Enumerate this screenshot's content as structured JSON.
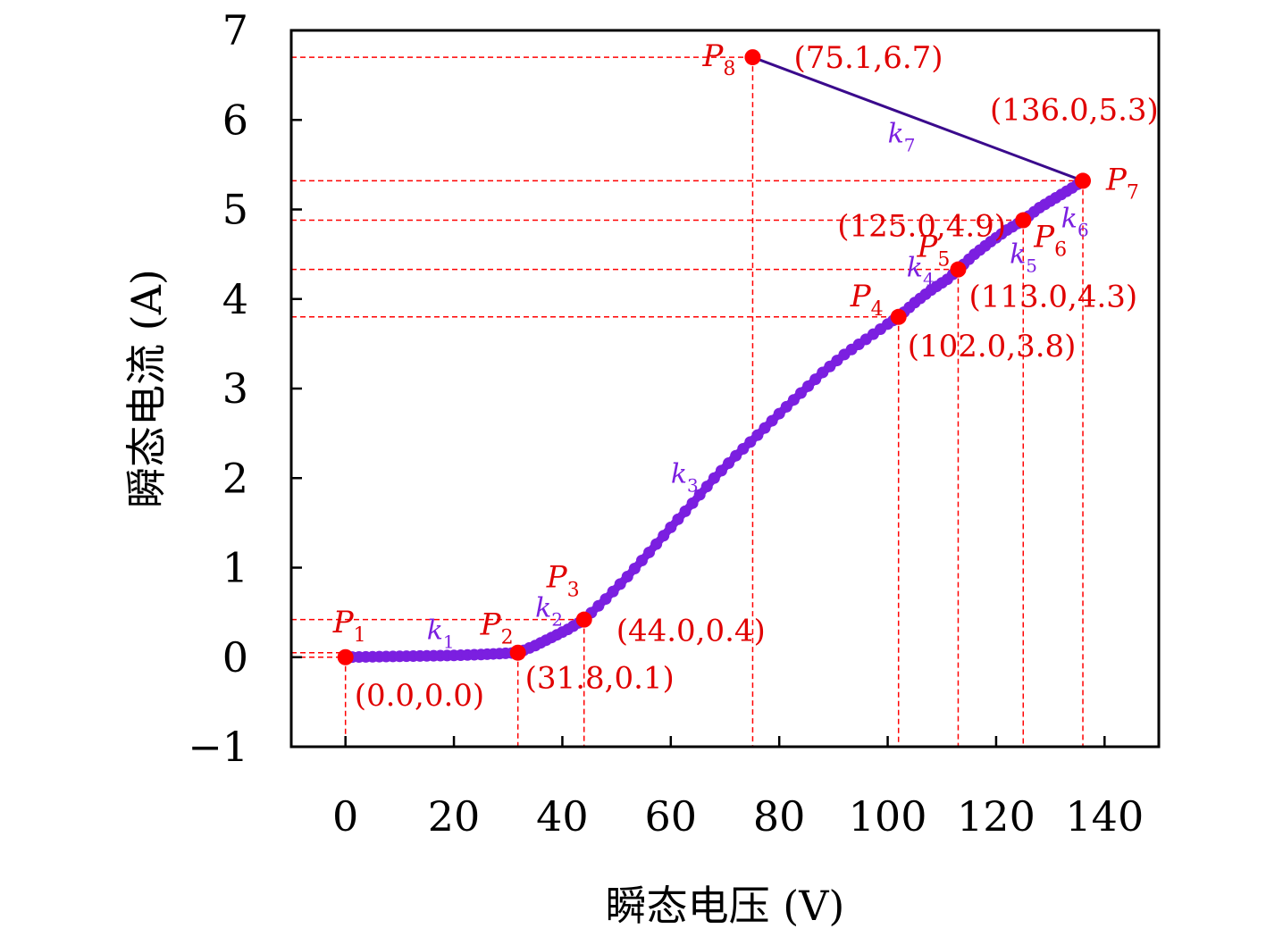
{
  "chart_data": {
    "type": "line",
    "xlabel": "瞬态电压 (V)",
    "ylabel": "瞬态电流 (A)",
    "xlim": [
      -10,
      150
    ],
    "ylim": [
      -1,
      7
    ],
    "xticks": [
      0,
      20,
      40,
      60,
      80,
      100,
      120,
      140
    ],
    "yticks": [
      -1,
      0,
      1,
      2,
      3,
      4,
      5,
      6,
      7
    ],
    "xtick_labels": [
      "0",
      "20",
      "40",
      "60",
      "80",
      "100",
      "120",
      "140"
    ],
    "ytick_labels": [
      "−1",
      "0",
      "1",
      "2",
      "3",
      "4",
      "5",
      "6",
      "7"
    ],
    "grid": false,
    "curve_points": [
      [
        0.0,
        0.0
      ],
      [
        5,
        0.005
      ],
      [
        10,
        0.01
      ],
      [
        15,
        0.015
      ],
      [
        20,
        0.02
      ],
      [
        25,
        0.03
      ],
      [
        31.8,
        0.05
      ],
      [
        35,
        0.13
      ],
      [
        38,
        0.22
      ],
      [
        41,
        0.31
      ],
      [
        44.0,
        0.42
      ],
      [
        48,
        0.65
      ],
      [
        52,
        0.9
      ],
      [
        56,
        1.17
      ],
      [
        60,
        1.45
      ],
      [
        64,
        1.72
      ],
      [
        68,
        2.0
      ],
      [
        72,
        2.25
      ],
      [
        76,
        2.48
      ],
      [
        80,
        2.72
      ],
      [
        84,
        2.95
      ],
      [
        88,
        3.18
      ],
      [
        92,
        3.38
      ],
      [
        96,
        3.55
      ],
      [
        100,
        3.72
      ],
      [
        102.0,
        3.8
      ],
      [
        105,
        3.96
      ],
      [
        108,
        4.1
      ],
      [
        111,
        4.22
      ],
      [
        113.0,
        4.33
      ],
      [
        116,
        4.5
      ],
      [
        119,
        4.64
      ],
      [
        122,
        4.77
      ],
      [
        125.0,
        4.88
      ],
      [
        128,
        5.02
      ],
      [
        131,
        5.13
      ],
      [
        134,
        5.24
      ],
      [
        136.0,
        5.32
      ]
    ],
    "key_points": [
      {
        "name": "P",
        "sub": "1",
        "x": 0.0,
        "y": 0.0,
        "coord": "(0.0,0.0)"
      },
      {
        "name": "P",
        "sub": "2",
        "x": 31.8,
        "y": 0.05,
        "coord": "(31.8,0.1)"
      },
      {
        "name": "P",
        "sub": "3",
        "x": 44.0,
        "y": 0.42,
        "coord": "(44.0,0.4)"
      },
      {
        "name": "P",
        "sub": "4",
        "x": 102.0,
        "y": 3.8,
        "coord": "(102.0,3.8)"
      },
      {
        "name": "P",
        "sub": "5",
        "x": 113.0,
        "y": 4.33,
        "coord": "(113.0,4.3)"
      },
      {
        "name": "P",
        "sub": "6",
        "x": 125.0,
        "y": 4.88,
        "coord": "(125.0,4.9)"
      },
      {
        "name": "P",
        "sub": "7",
        "x": 136.0,
        "y": 5.32,
        "coord": "(136.0,5.3)"
      },
      {
        "name": "P",
        "sub": "8",
        "x": 75.1,
        "y": 6.7,
        "coord": "(75.1,6.7)"
      }
    ],
    "slope_labels": [
      {
        "name": "k",
        "sub": "1",
        "x": 15,
        "y": 0.2
      },
      {
        "name": "k",
        "sub": "2",
        "x": 35,
        "y": 0.45
      },
      {
        "name": "k",
        "sub": "3",
        "x": 60,
        "y": 1.95
      },
      {
        "name": "k",
        "sub": "4",
        "x": 103.5,
        "y": 4.25
      },
      {
        "name": "k",
        "sub": "5",
        "x": 122.5,
        "y": 4.4
      },
      {
        "name": "k",
        "sub": "6",
        "x": 132,
        "y": 4.8
      },
      {
        "name": "k",
        "sub": "7",
        "x": 100,
        "y": 5.75
      }
    ],
    "colors": {
      "curve": "#7b1fe0",
      "line_p8_p7": "#3a0a8c",
      "points": "#ff0000",
      "guides": "#ff0000",
      "coord_text": "#e00000",
      "slope_text": "#7b1fe0"
    }
  }
}
